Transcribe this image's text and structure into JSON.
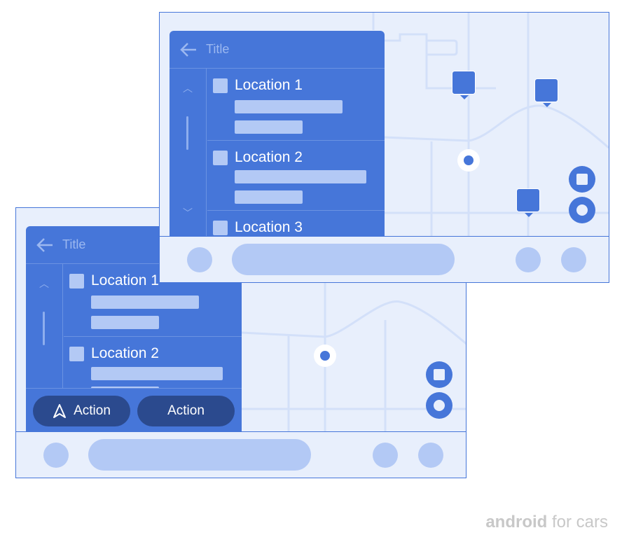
{
  "colors": {
    "accent": "#4676d9",
    "map_bg": "#e8effc",
    "placeholder": "#b3c9f5",
    "action_button": "#2b4a8e"
  },
  "back_screen": {
    "title": "Title",
    "items": [
      {
        "label": "Location 1"
      },
      {
        "label": "Location 2"
      }
    ],
    "actions": [
      {
        "label": "Action",
        "icon": "navigation-arrow-icon"
      },
      {
        "label": "Action"
      }
    ]
  },
  "front_screen": {
    "title": "Title",
    "items": [
      {
        "label": "Location 1"
      },
      {
        "label": "Location 2"
      },
      {
        "label": "Location 3"
      }
    ]
  },
  "logo": {
    "brand": "android",
    "suffix": "for cars"
  }
}
